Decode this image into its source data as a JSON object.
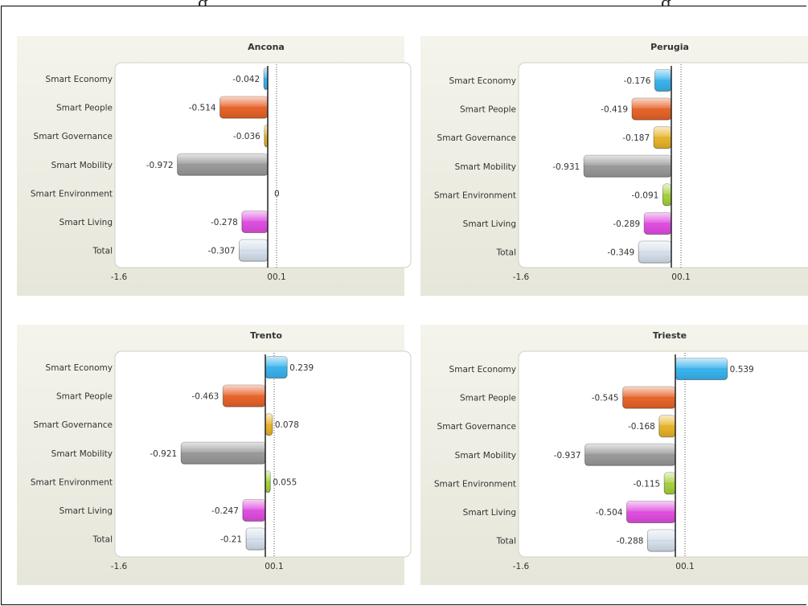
{
  "chart_data": [
    {
      "type": "bar",
      "title": "Ancona",
      "categories": [
        "Smart Economy",
        "Smart People",
        "Smart Governance",
        "Smart Mobility",
        "Smart Environment",
        "Smart Living",
        "Total"
      ],
      "values": [
        -0.042,
        -0.514,
        -0.036,
        -0.972,
        0,
        -0.278,
        -0.307
      ],
      "value_labels": [
        "-0.042",
        "-0.514",
        "-0.036",
        "-0.972",
        "0",
        "-0.278",
        "-0.307"
      ],
      "xlim": [
        -1.6,
        1.2
      ],
      "tick_labels": [
        "-1.6",
        "00.1"
      ]
    },
    {
      "type": "bar",
      "title": "Perugia",
      "categories": [
        "Smart Economy",
        "Smart People",
        "Smart Governance",
        "Smart Mobility",
        "Smart Environment",
        "Smart Living",
        "Total"
      ],
      "values": [
        -0.176,
        -0.419,
        -0.187,
        -0.931,
        -0.091,
        -0.289,
        -0.349
      ],
      "value_labels": [
        "-0.176",
        "-0.419",
        "-0.187",
        "-0.931",
        "-0.091",
        "-0.289",
        "-0.349"
      ],
      "xlim": [
        -1.6,
        1.2
      ],
      "tick_labels": [
        "-1.6",
        "00.1"
      ]
    },
    {
      "type": "bar",
      "title": "Trento",
      "categories": [
        "Smart Economy",
        "Smart People",
        "Smart Governance",
        "Smart Mobility",
        "Smart Environment",
        "Smart Living",
        "Total"
      ],
      "values": [
        0.239,
        -0.463,
        0.078,
        -0.921,
        0.055,
        -0.247,
        -0.21
      ],
      "value_labels": [
        "0.239",
        "-0.463",
        "0.078",
        "-0.921",
        "0.055",
        "-0.247",
        "-0.21"
      ],
      "xlim": [
        -1.6,
        1.2
      ],
      "tick_labels": [
        "-1.6",
        "00.1"
      ]
    },
    {
      "type": "bar",
      "title": "Trieste",
      "categories": [
        "Smart Economy",
        "Smart People",
        "Smart Governance",
        "Smart Mobility",
        "Smart Environment",
        "Smart Living",
        "Total"
      ],
      "values": [
        0.539,
        -0.545,
        -0.168,
        -0.937,
        -0.115,
        -0.504,
        -0.288
      ],
      "value_labels": [
        "0.539",
        "-0.545",
        "-0.168",
        "-0.937",
        "-0.115",
        "-0.504",
        "-0.288"
      ],
      "xlim": [
        -1.6,
        1.2
      ],
      "tick_labels": [
        "-1.6",
        "00.1"
      ]
    }
  ],
  "colors": {
    "Smart Economy": "#3ab4ee",
    "Smart People": "#e8642a",
    "Smart Governance": "#e8b42a",
    "Smart Mobility": "#9a9a9a",
    "Smart Environment": "#a6d23c",
    "Smart Living": "#e04ee0",
    "Total": "#d6e0ec",
    "panel_background": "#eeeee4",
    "plot_background": "#ffffff"
  }
}
